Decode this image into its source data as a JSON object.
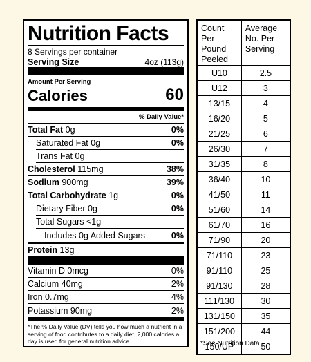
{
  "nutrition": {
    "title": "Nutrition Facts",
    "servings_per_container": "8 Servings per container",
    "serving_size_label": "Serving Size",
    "serving_size_value": "4oz (113g)",
    "amount_per_serving": "Amount Per Serving",
    "calories_label": "Calories",
    "calories_value": "60",
    "dv_header": "% Daily Value*",
    "nutrients": [
      {
        "label": "Total Fat",
        "amount": "0g",
        "dv": "0%"
      },
      {
        "label": "Saturated Fat",
        "amount": "0g",
        "dv": "0%"
      },
      {
        "label": "Trans Fat",
        "amount": "0g",
        "dv": ""
      },
      {
        "label": "Cholesterol",
        "amount": "115mg",
        "dv": "38%"
      },
      {
        "label": "Sodium",
        "amount": "900mg",
        "dv": "39%"
      },
      {
        "label": "Total Carbohydrate",
        "amount": "1g",
        "dv": "0%"
      },
      {
        "label": "Dietary Fiber",
        "amount": "0g",
        "dv": "0%"
      },
      {
        "label": "Total Sugars",
        "amount": "<1g",
        "dv": ""
      },
      {
        "label": "Includes 0g Added Sugars",
        "amount": "",
        "dv": "0%"
      }
    ],
    "protein_label": "Protein",
    "protein_amount": "13g",
    "vitamins": [
      {
        "label": "Vitamin D 0mcg",
        "dv": "0%"
      },
      {
        "label": "Calcium 40mg",
        "dv": "2%"
      },
      {
        "label": "Iron 0.7mg",
        "dv": "4%"
      },
      {
        "label": "Potassium 90mg",
        "dv": "2%"
      }
    ],
    "footnote": "*The % Daily Value (DV) tells you how much a nutrient in a serving of food contributes to a daily diet. 2,000 calories a day is used for general nutrition advice."
  },
  "count_table": {
    "header_count": "Count Per Pound Peeled",
    "header_average": "Average No. Per Serving",
    "rows": [
      [
        "U10",
        "2.5"
      ],
      [
        "U12",
        "3"
      ],
      [
        "13/15",
        "4"
      ],
      [
        "16/20",
        "5"
      ],
      [
        "21/25",
        "6"
      ],
      [
        "26/30",
        "7"
      ],
      [
        "31/35",
        "8"
      ],
      [
        "36/40",
        "10"
      ],
      [
        "41/50",
        "11"
      ],
      [
        "51/60",
        "14"
      ],
      [
        "61/70",
        "16"
      ],
      [
        "71/90",
        "20"
      ],
      [
        "71/110",
        "23"
      ],
      [
        "91/110",
        "25"
      ],
      [
        "91/130",
        "28"
      ],
      [
        "111/130",
        "30"
      ],
      [
        "131/150",
        "35"
      ],
      [
        "151/200",
        "44"
      ],
      [
        "150/UP",
        "50"
      ]
    ],
    "note": "*See Nutrition Data"
  }
}
